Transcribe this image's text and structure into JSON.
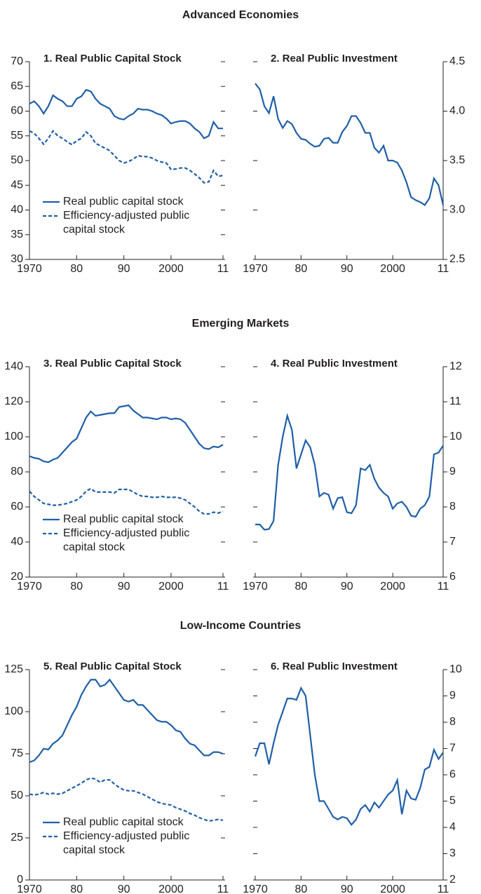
{
  "section_titles": [
    "Advanced Economies",
    "Emerging Markets",
    "Low-Income Countries"
  ],
  "chart_data": [
    {
      "type": "line",
      "title": "1. Real Public Capital Stock",
      "axis_side": "left",
      "legend": "lower left",
      "x": [
        1970,
        1971,
        1972,
        1973,
        1974,
        1975,
        1976,
        1977,
        1978,
        1979,
        1980,
        1981,
        1982,
        1983,
        1984,
        1985,
        1986,
        1987,
        1988,
        1989,
        1990,
        1991,
        1992,
        1993,
        1994,
        1995,
        1996,
        1997,
        1998,
        1999,
        2000,
        2001,
        2002,
        2003,
        2004,
        2005,
        2006,
        2007,
        2008,
        2009,
        2010,
        2011
      ],
      "xlim": [
        1970,
        2011
      ],
      "xticks": [
        1970,
        {
          "value": 1980,
          "label": "80"
        },
        {
          "value": 1990,
          "label": "90"
        },
        2000,
        {
          "value": 2011,
          "label": "11"
        }
      ],
      "ylim": [
        30,
        70
      ],
      "yticks": [
        30,
        35,
        40,
        45,
        50,
        55,
        60,
        65,
        70
      ],
      "series": [
        {
          "name": "Real public capital stock",
          "color": "#1f5fa8",
          "linestyle": "solid",
          "values": [
            61.5,
            62,
            61,
            59.5,
            61,
            63.2,
            62.5,
            62,
            61,
            61,
            62.5,
            63,
            64.3,
            64,
            62.5,
            61.5,
            61,
            60.5,
            59,
            58.5,
            58.3,
            59,
            59.5,
            60.5,
            60.3,
            60.3,
            60,
            59.5,
            59.2,
            58.5,
            57.5,
            57.8,
            58,
            58,
            57.5,
            56.5,
            55.8,
            54.5,
            55,
            57.8,
            56.5,
            56.5
          ]
        },
        {
          "name": "Efficiency-adjusted public capital stock",
          "color": "#1f5fa8",
          "linestyle": "dashed",
          "values": [
            56,
            55.5,
            54.5,
            53.3,
            54.5,
            56,
            55,
            54.5,
            53.8,
            53.2,
            54,
            54.5,
            55.8,
            55,
            53.5,
            53,
            52.5,
            52,
            51,
            50,
            49.5,
            49.8,
            50.3,
            51,
            50.8,
            50.8,
            50.5,
            50,
            49.7,
            49.5,
            48.2,
            48.3,
            48.5,
            48.5,
            48,
            47.3,
            46.5,
            45.5,
            45.7,
            48,
            46.8,
            47
          ]
        }
      ]
    },
    {
      "type": "line",
      "title": "2. Real Public Investment",
      "axis_side": "right",
      "color": "#1f5fa8",
      "x": [
        1970,
        1971,
        1972,
        1973,
        1974,
        1975,
        1976,
        1977,
        1978,
        1979,
        1980,
        1981,
        1982,
        1983,
        1984,
        1985,
        1986,
        1987,
        1988,
        1989,
        1990,
        1991,
        1992,
        1993,
        1994,
        1995,
        1996,
        1997,
        1998,
        1999,
        2000,
        2001,
        2002,
        2003,
        2004,
        2005,
        2006,
        2007,
        2008,
        2009,
        2010,
        2011
      ],
      "xlim": [
        1970,
        2011
      ],
      "xticks": [
        1970,
        {
          "value": 1980,
          "label": "80"
        },
        {
          "value": 1990,
          "label": "90"
        },
        2000,
        {
          "value": 2011,
          "label": "11"
        }
      ],
      "ylim": [
        2.5,
        4.5
      ],
      "yticks": [
        2.5,
        {
          "value": 3,
          "label": "3.0"
        },
        3.5,
        {
          "value": 4,
          "label": "4.0"
        },
        4.5
      ],
      "values": [
        4.28,
        4.22,
        4.05,
        3.98,
        4.15,
        3.92,
        3.83,
        3.9,
        3.87,
        3.78,
        3.72,
        3.71,
        3.67,
        3.64,
        3.65,
        3.72,
        3.73,
        3.68,
        3.68,
        3.79,
        3.85,
        3.95,
        3.95,
        3.88,
        3.78,
        3.78,
        3.63,
        3.58,
        3.65,
        3.5,
        3.5,
        3.48,
        3.4,
        3.28,
        3.13,
        3.1,
        3.08,
        3.05,
        3.12,
        3.32,
        3.25,
        3.05
      ]
    },
    {
      "type": "line",
      "title": "3. Real Public Capital Stock",
      "axis_side": "left",
      "legend": "lower left",
      "x": [
        1970,
        1971,
        1972,
        1973,
        1974,
        1975,
        1976,
        1977,
        1978,
        1979,
        1980,
        1981,
        1982,
        1983,
        1984,
        1985,
        1986,
        1987,
        1988,
        1989,
        1990,
        1991,
        1992,
        1993,
        1994,
        1995,
        1996,
        1997,
        1998,
        1999,
        2000,
        2001,
        2002,
        2003,
        2004,
        2005,
        2006,
        2007,
        2008,
        2009,
        2010,
        2011
      ],
      "xlim": [
        1970,
        2011
      ],
      "xticks": [
        1970,
        {
          "value": 1980,
          "label": "80"
        },
        {
          "value": 1990,
          "label": "90"
        },
        2000,
        {
          "value": 2011,
          "label": "11"
        }
      ],
      "ylim": [
        20,
        140
      ],
      "yticks": [
        20,
        40,
        60,
        80,
        100,
        120,
        140
      ],
      "series": [
        {
          "name": "Real public capital stock",
          "color": "#1f5fa8",
          "linestyle": "solid",
          "values": [
            89,
            88,
            87.5,
            86,
            85.5,
            87,
            88,
            91,
            94,
            97,
            99,
            105,
            111,
            114.5,
            112,
            112.5,
            113,
            113.5,
            113.5,
            117,
            117.5,
            118,
            115,
            113,
            111,
            111,
            110.5,
            110,
            111,
            111,
            110,
            110.5,
            110,
            108,
            104,
            100,
            96,
            93.5,
            93,
            94.5,
            94,
            95.5
          ]
        },
        {
          "name": "Efficiency-adjusted public capital stock",
          "color": "#1f5fa8",
          "linestyle": "dashed",
          "values": [
            69,
            66,
            64,
            62,
            61.5,
            61,
            61,
            61.5,
            62,
            63,
            64,
            66,
            69,
            70.5,
            68.5,
            68.5,
            68.5,
            68.5,
            68,
            70,
            70,
            70,
            68.5,
            67,
            66,
            66,
            65.5,
            65.5,
            66,
            65.5,
            65.5,
            65.5,
            65,
            64,
            62,
            60,
            57.5,
            56,
            56,
            57,
            56.5,
            57.5
          ]
        }
      ]
    },
    {
      "type": "line",
      "title": "4. Real Public Investment",
      "axis_side": "right",
      "color": "#1f5fa8",
      "x": [
        1970,
        1971,
        1972,
        1973,
        1974,
        1975,
        1976,
        1977,
        1978,
        1979,
        1980,
        1981,
        1982,
        1983,
        1984,
        1985,
        1986,
        1987,
        1988,
        1989,
        1990,
        1991,
        1992,
        1993,
        1994,
        1995,
        1996,
        1997,
        1998,
        1999,
        2000,
        2001,
        2002,
        2003,
        2004,
        2005,
        2006,
        2007,
        2008,
        2009,
        2010,
        2011
      ],
      "xlim": [
        1970,
        2011
      ],
      "xticks": [
        1970,
        {
          "value": 1980,
          "label": "80"
        },
        {
          "value": 1990,
          "label": "90"
        },
        2000,
        {
          "value": 2011,
          "label": "11"
        }
      ],
      "ylim": [
        6,
        12
      ],
      "yticks": [
        6,
        7,
        8,
        9,
        10,
        11,
        12
      ],
      "values": [
        7.5,
        7.5,
        7.35,
        7.37,
        7.6,
        9.2,
        10.0,
        10.6,
        10.2,
        9.1,
        9.5,
        9.9,
        9.7,
        9.2,
        8.3,
        8.4,
        8.35,
        7.95,
        8.25,
        8.28,
        7.85,
        7.82,
        8.05,
        9.1,
        9.05,
        9.2,
        8.8,
        8.55,
        8.4,
        8.3,
        7.95,
        8.1,
        8.15,
        8.0,
        7.75,
        7.72,
        7.95,
        8.05,
        8.3,
        9.5,
        9.55,
        9.75
      ]
    },
    {
      "type": "line",
      "title": "5. Real Public Capital Stock",
      "axis_side": "left",
      "legend": "lower left",
      "x": [
        1970,
        1971,
        1972,
        1973,
        1974,
        1975,
        1976,
        1977,
        1978,
        1979,
        1980,
        1981,
        1982,
        1983,
        1984,
        1985,
        1986,
        1987,
        1988,
        1989,
        1990,
        1991,
        1992,
        1993,
        1994,
        1995,
        1996,
        1997,
        1998,
        1999,
        2000,
        2001,
        2002,
        2003,
        2004,
        2005,
        2006,
        2007,
        2008,
        2009,
        2010,
        2011
      ],
      "xlim": [
        1970,
        2011
      ],
      "xticks": [
        1970,
        {
          "value": 1980,
          "label": "80"
        },
        {
          "value": 1990,
          "label": "90"
        },
        2000,
        {
          "value": 2011,
          "label": "11"
        }
      ],
      "ylim": [
        0,
        125
      ],
      "yticks": [
        0,
        25,
        50,
        75,
        100,
        125
      ],
      "series": [
        {
          "name": "Real public capital stock",
          "color": "#1f5fa8",
          "linestyle": "solid",
          "values": [
            70,
            71,
            74,
            78,
            77.5,
            81,
            83,
            86,
            92,
            98,
            103,
            110,
            115,
            119,
            119,
            115,
            116,
            119,
            115,
            111,
            107,
            106,
            107,
            104,
            104,
            101,
            98,
            95,
            94,
            94,
            92,
            89,
            88,
            84,
            81,
            80,
            77,
            74,
            74,
            76,
            76,
            75
          ]
        },
        {
          "name": "Efficiency-adjusted public capital stock",
          "color": "#1f5fa8",
          "linestyle": "dashed",
          "values": [
            51,
            50.5,
            51,
            52,
            51,
            51.5,
            51,
            51.5,
            53,
            54.5,
            56,
            57.5,
            59.5,
            60.5,
            60,
            58,
            59.5,
            59.5,
            57,
            55,
            53.5,
            53,
            53,
            52,
            51,
            49.5,
            48,
            46.5,
            45.5,
            45,
            44.5,
            43,
            42,
            41,
            39.5,
            38.5,
            37,
            36,
            35,
            35.5,
            36,
            35.5
          ]
        }
      ]
    },
    {
      "type": "line",
      "title": "6. Real Public Investment",
      "axis_side": "right",
      "color": "#1f5fa8",
      "x": [
        1970,
        1971,
        1972,
        1973,
        1974,
        1975,
        1976,
        1977,
        1978,
        1979,
        1980,
        1981,
        1982,
        1983,
        1984,
        1985,
        1986,
        1987,
        1988,
        1989,
        1990,
        1991,
        1992,
        1993,
        1994,
        1995,
        1996,
        1997,
        1998,
        1999,
        2000,
        2001,
        2002,
        2003,
        2004,
        2005,
        2006,
        2007,
        2008,
        2009,
        2010,
        2011
      ],
      "xlim": [
        1970,
        2011
      ],
      "xticks": [
        1970,
        {
          "value": 1980,
          "label": "80"
        },
        {
          "value": 1990,
          "label": "90"
        },
        2000,
        {
          "value": 2011,
          "label": "11"
        }
      ],
      "ylim": [
        2,
        10
      ],
      "yticks": [
        2,
        3,
        4,
        5,
        6,
        7,
        8,
        9,
        10
      ],
      "values": [
        6.7,
        7.2,
        7.2,
        6.4,
        7.2,
        7.9,
        8.4,
        8.9,
        8.9,
        8.85,
        9.3,
        9.0,
        7.5,
        6.0,
        5.0,
        5.0,
        4.7,
        4.4,
        4.3,
        4.4,
        4.35,
        4.1,
        4.3,
        4.7,
        4.85,
        4.6,
        4.95,
        4.75,
        5.0,
        5.25,
        5.4,
        5.8,
        4.5,
        5.4,
        5.1,
        5.05,
        5.5,
        6.2,
        6.3,
        6.95,
        6.6,
        6.85
      ]
    }
  ]
}
